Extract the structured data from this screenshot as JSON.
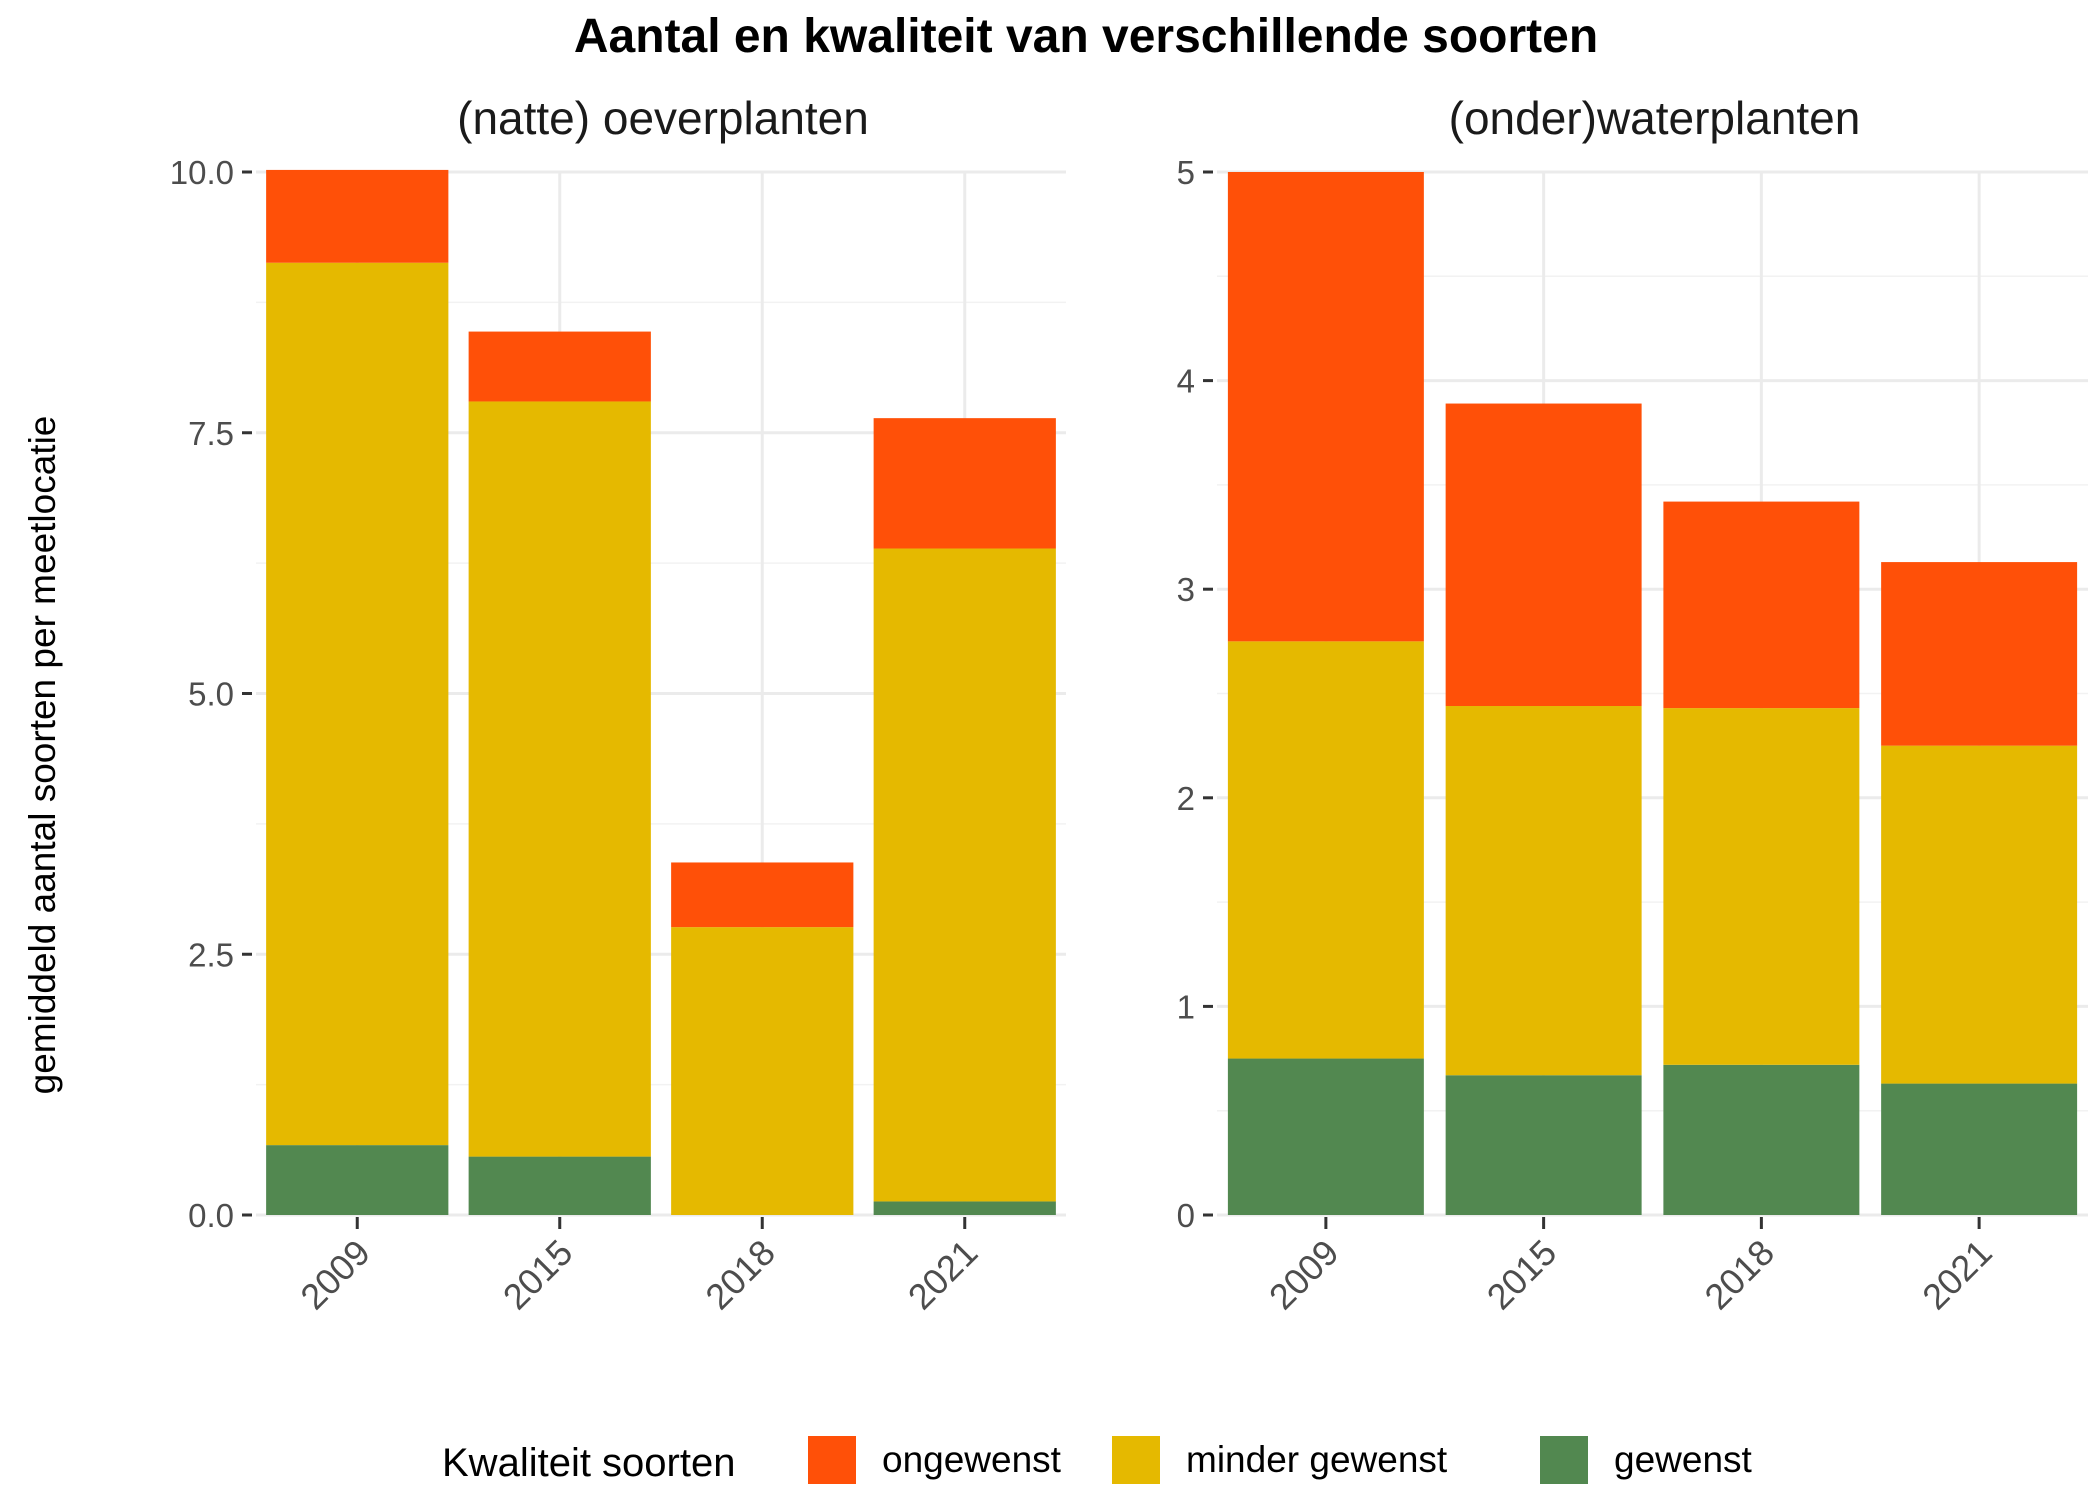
{
  "title": "Aantal en kwaliteit van verschillende soorten",
  "ylabel": "gemiddeld aantal soorten per meetlocatie",
  "legend": {
    "title": "Kwaliteit soorten",
    "position": "bottom",
    "items": [
      {
        "label": "ongewenst",
        "color": "#FF5008"
      },
      {
        "label": "minder gewenst",
        "color": "#E5B900"
      },
      {
        "label": "gewenst",
        "color": "#528850"
      }
    ]
  },
  "chart_data": [
    {
      "type": "bar",
      "stacked": true,
      "subtitle": "(natte) oeverplanten",
      "categories": [
        "2009",
        "2015",
        "2018",
        "2021"
      ],
      "ylim": [
        0,
        10
      ],
      "yticks": [
        "0.0",
        "2.5",
        "5.0",
        "7.5",
        "10.0"
      ],
      "ytick_values": [
        0,
        2.5,
        5,
        7.5,
        10
      ],
      "grid": true,
      "series": [
        {
          "name": "gewenst",
          "values": [
            0.67,
            0.56,
            0.0,
            0.13
          ]
        },
        {
          "name": "minder gewenst",
          "values": [
            8.46,
            7.24,
            2.76,
            6.26
          ]
        },
        {
          "name": "ongewenst",
          "values": [
            0.89,
            0.67,
            0.62,
            1.25
          ]
        }
      ]
    },
    {
      "type": "bar",
      "stacked": true,
      "subtitle": "(onder)waterplanten",
      "categories": [
        "2009",
        "2015",
        "2018",
        "2021"
      ],
      "ylim": [
        0,
        5
      ],
      "yticks": [
        "0",
        "1",
        "2",
        "3",
        "4",
        "5"
      ],
      "ytick_values": [
        0,
        1,
        2,
        3,
        4,
        5
      ],
      "grid": true,
      "series": [
        {
          "name": "gewenst",
          "values": [
            0.75,
            0.67,
            0.72,
            0.63
          ]
        },
        {
          "name": "minder gewenst",
          "values": [
            2.0,
            1.77,
            1.71,
            1.62
          ]
        },
        {
          "name": "ongewenst",
          "values": [
            2.25,
            1.45,
            0.99,
            0.88
          ]
        }
      ]
    }
  ]
}
